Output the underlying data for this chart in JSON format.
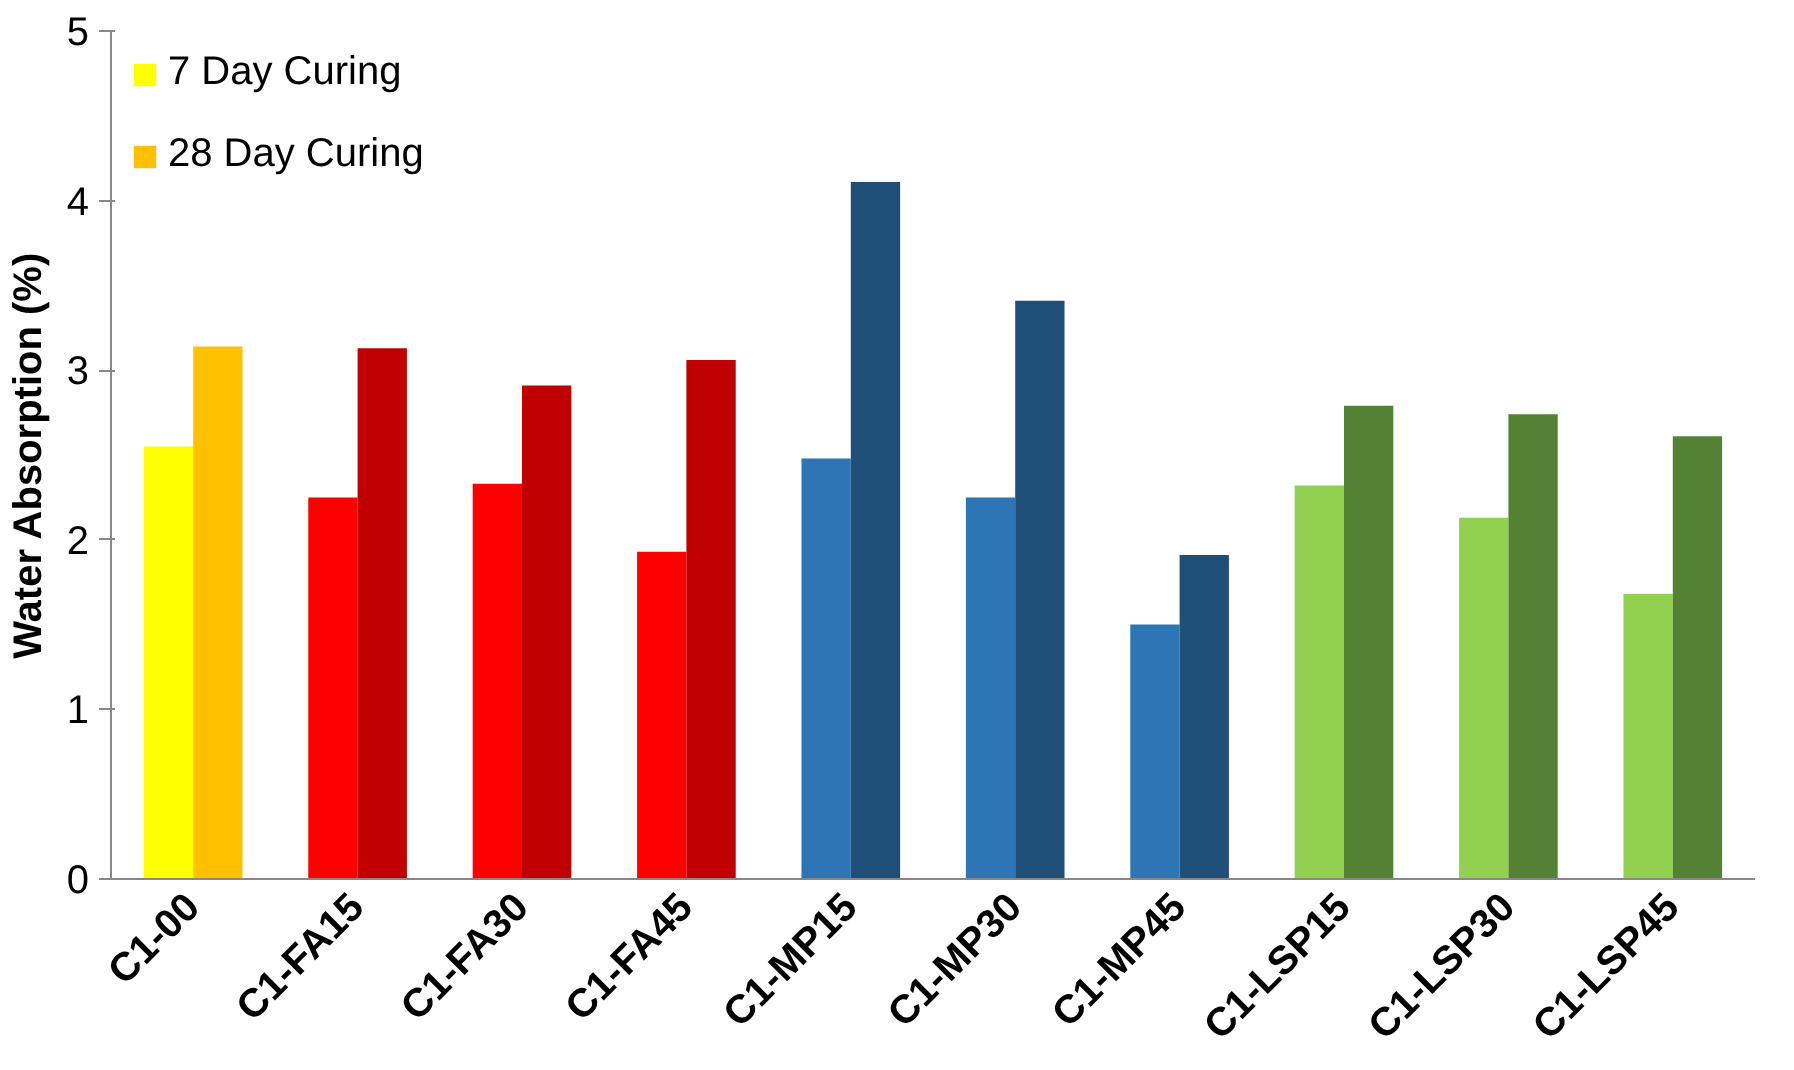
{
  "chart_data": {
    "type": "bar",
    "ylabel": "Water Absorption (%)",
    "categories": [
      "C1-00",
      "C1-FA15",
      "C1-FA30",
      "C1-FA45",
      "C1-MP15",
      "C1-MP30",
      "C1-MP45",
      "C1-LSP15",
      "C1-LSP30",
      "C1-LSP45"
    ],
    "series": [
      {
        "name": "7 Day Curing",
        "colors": [
          "#ffff00",
          "#ff0000",
          "#ff0000",
          "#ff0000",
          "#2e75b6",
          "#2e75b6",
          "#2e75b6",
          "#92d050",
          "#92d050",
          "#92d050"
        ],
        "values": [
          2.55,
          2.25,
          2.33,
          1.93,
          2.48,
          2.25,
          1.5,
          2.32,
          2.13,
          1.68
        ]
      },
      {
        "name": "28 Day Curing",
        "colors": [
          "#ffc000",
          "#c00000",
          "#c00000",
          "#c00000",
          "#1f4e79",
          "#1f4e79",
          "#1f4e79",
          "#548235",
          "#548235",
          "#548235"
        ],
        "values": [
          3.14,
          3.13,
          2.91,
          3.06,
          4.11,
          3.41,
          1.91,
          2.79,
          2.74,
          2.61
        ]
      }
    ],
    "ylim": [
      0,
      5
    ],
    "yticks": [
      0,
      1,
      2,
      3,
      4,
      5
    ],
    "grid": false,
    "legend": "top left"
  }
}
